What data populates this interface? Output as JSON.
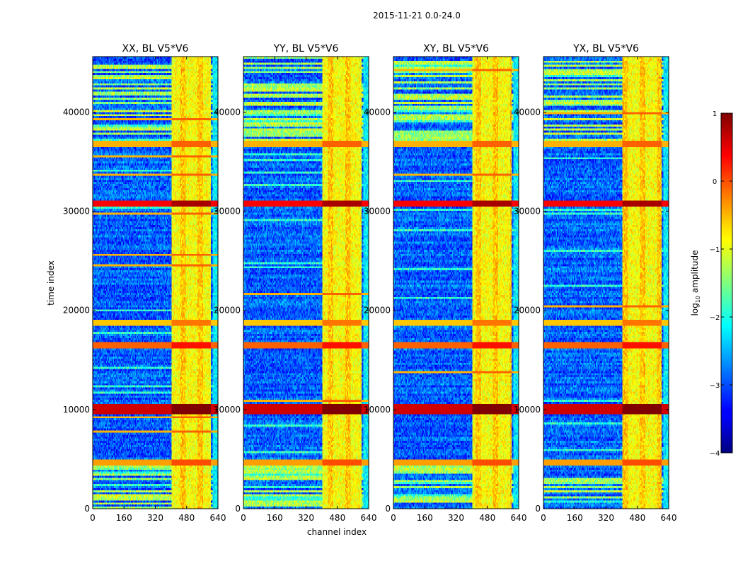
{
  "chart_data": {
    "type": "heatmap",
    "suptitle": "2015-11-21 0.0-24.0",
    "xlabel": "channel index",
    "ylabel": "time index",
    "xlim": [
      0,
      640
    ],
    "ylim": [
      0,
      45600
    ],
    "xticks": [
      0,
      160,
      320,
      480,
      640
    ],
    "xtick_labels": [
      "0",
      "160",
      "320",
      "480",
      "640"
    ],
    "yticks": [
      0,
      10000,
      20000,
      30000,
      40000
    ],
    "ytick_labels": [
      "0",
      "10000",
      "20000",
      "30000",
      "40000"
    ],
    "panels": [
      {
        "title": "XX, BL V5*V6"
      },
      {
        "title": "YY, BL V5*V6"
      },
      {
        "title": "XY, BL V5*V6"
      },
      {
        "title": "YX, BL V5*V6"
      }
    ],
    "colorbar": {
      "label": "log10 amplitude",
      "label_main": "log",
      "label_sub": "10",
      "label_rest": " amplitude",
      "range": [
        -4,
        1
      ],
      "ticks": [
        1,
        0,
        -1,
        -2,
        -3,
        -4
      ],
      "tick_labels": [
        "1",
        "0",
        "−1",
        "−2",
        "−3",
        "−4"
      ],
      "colormap": "jet"
    },
    "features": {
      "high_amplitude_channel_band": [
        405,
        605
      ],
      "bright_time_bands": [
        [
          4300,
          4900,
          -0.2
        ],
        [
          9500,
          10500,
          0.8
        ],
        [
          16200,
          16700,
          0.1
        ],
        [
          18400,
          19000,
          -0.4
        ],
        [
          30500,
          31000,
          0.6
        ],
        [
          36500,
          37100,
          -0.3
        ]
      ],
      "rfi_time_ranges": [
        [
          0,
          4700
        ],
        [
          36500,
          45600
        ]
      ]
    }
  }
}
